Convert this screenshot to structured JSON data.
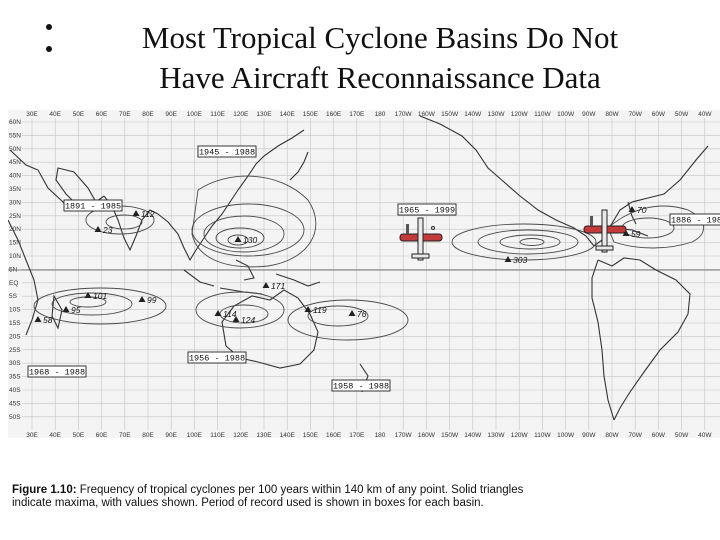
{
  "slide": {
    "title_line1": "Most Tropical Cyclone Basins Do Not",
    "title_line2": "Have Aircraft Reconnaissance Data"
  },
  "map": {
    "lon_labels_top": [
      "30E",
      "40E",
      "50E",
      "60E",
      "70E",
      "80E",
      "90E",
      "100E",
      "110E",
      "120E",
      "130E",
      "140E",
      "150E",
      "160E",
      "170E",
      "180",
      "170W",
      "160W",
      "150W",
      "140W",
      "130W",
      "120W",
      "110W",
      "100W",
      "90W",
      "80W",
      "70W",
      "60W",
      "50W",
      "40W"
    ],
    "lat_labels_left": [
      "60N",
      "55N",
      "50N",
      "45N",
      "40N",
      "35N",
      "30N",
      "25N",
      "20N",
      "15N",
      "10N",
      "5N",
      "EQ",
      "5S",
      "10S",
      "15S",
      "20S",
      "25S",
      "30S",
      "35S",
      "40S",
      "45S",
      "50S",
      "55S"
    ],
    "record_periods": [
      {
        "id": "wpac",
        "label": "1945 - 1988"
      },
      {
        "id": "nio",
        "label": "1891 - 1985"
      },
      {
        "id": "epac",
        "label": "1965 - 1999"
      },
      {
        "id": "atl",
        "label": "1886 - 1988"
      },
      {
        "id": "sio",
        "label": "1956 - 1988"
      },
      {
        "id": "swio",
        "label": "1968 - 1988"
      },
      {
        "id": "spac",
        "label": "1958 - 1988"
      }
    ],
    "maxima_values": [
      {
        "id": "wpac-1",
        "value": "130"
      },
      {
        "id": "nio-1",
        "value": "112"
      },
      {
        "id": "nio-2",
        "value": "23"
      },
      {
        "id": "epac-1",
        "value": "303"
      },
      {
        "id": "atl-1",
        "value": "70"
      },
      {
        "id": "atl-2",
        "value": "59"
      },
      {
        "id": "sio-1",
        "value": "101"
      },
      {
        "id": "sio-2",
        "value": "95"
      },
      {
        "id": "sio-3",
        "value": "58"
      },
      {
        "id": "sio-4",
        "value": "99"
      },
      {
        "id": "aus-1",
        "value": "114"
      },
      {
        "id": "aus-2",
        "value": "124"
      },
      {
        "id": "aus-3",
        "value": "171"
      },
      {
        "id": "spac-1",
        "value": "119"
      },
      {
        "id": "spac-2",
        "value": "76"
      }
    ],
    "contour_labels": [
      "20",
      "50",
      "100",
      "150",
      "200",
      "250"
    ],
    "aircraft_icons": [
      "airplane-icon",
      "airplane-icon"
    ]
  },
  "caption": {
    "figure_label": "Figure 1.10:",
    "text": "Frequency of tropical cyclones per 100 years within 140 km of any point.  Solid triangles indicate maxima, with values shown.  Period of record used is shown in boxes for each basin."
  },
  "colors": {
    "map_bg": "#f4f4f4",
    "grid": "#b8b8b8",
    "coast": "#333333",
    "contour": "#4a4a4a",
    "plane_body": "#c23a3a"
  }
}
